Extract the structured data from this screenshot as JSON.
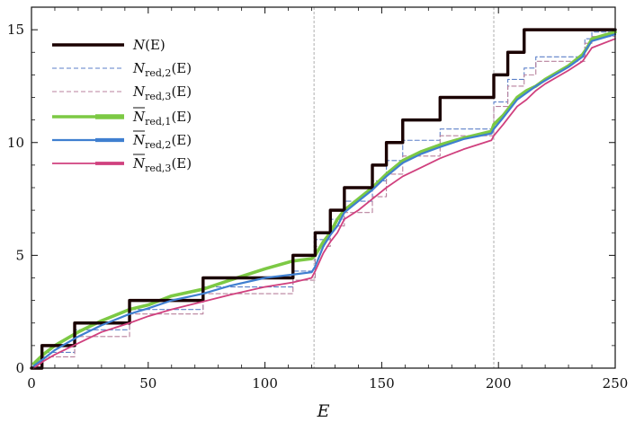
{
  "chart_data": {
    "type": "line",
    "xlabel": "E",
    "ylabel": "",
    "xlim": [
      0,
      250
    ],
    "ylim": [
      0,
      16
    ],
    "x_ticks": [
      0,
      50,
      100,
      150,
      200,
      250
    ],
    "y_ticks": [
      0,
      5,
      10,
      15
    ],
    "grid": false,
    "legend_position": "top-left",
    "vertical_reference_lines": [
      121,
      198
    ],
    "step_points": [
      4.5,
      18.5,
      42,
      73.5,
      112,
      121.5,
      128,
      134,
      146,
      152,
      159,
      175,
      198,
      204,
      211,
      216,
      237,
      240
    ],
    "series": [
      {
        "name": "N(E)",
        "legend_label": {
          "base": "N",
          "sub": "",
          "arg": "(E)",
          "overline": false
        },
        "kind": "step",
        "color": "#1a0000",
        "style": "solid-thick",
        "x": [
          0,
          4.5,
          18.5,
          42,
          73.5,
          112,
          121.5,
          128,
          134,
          146,
          152,
          159,
          175,
          198,
          204,
          211,
          216,
          237,
          240,
          250
        ],
        "y": [
          0,
          1,
          2,
          3,
          4,
          5,
          6,
          7,
          8,
          9,
          10,
          11,
          12,
          13,
          14,
          15,
          15,
          15,
          15,
          15
        ]
      },
      {
        "name": "N_red,2(E)",
        "legend_label": {
          "base": "N",
          "sub": "red,2",
          "arg": "(E)",
          "overline": false
        },
        "kind": "step",
        "color": "#5b7fc8",
        "style": "dashed",
        "x": [
          0,
          4.5,
          18.5,
          42,
          73.5,
          112,
          121.5,
          128,
          134,
          146,
          152,
          159,
          175,
          198,
          204,
          211,
          216,
          237,
          240,
          250
        ],
        "y": [
          0,
          0.7,
          1.7,
          2.6,
          3.6,
          4.3,
          5.7,
          6.6,
          7.4,
          8.3,
          9.2,
          10.1,
          10.6,
          11.8,
          12.8,
          13.3,
          13.8,
          14.6,
          14.9,
          15
        ]
      },
      {
        "name": "N_red,3(E)",
        "legend_label": {
          "base": "N",
          "sub": "red,3",
          "arg": "(E)",
          "overline": false
        },
        "kind": "step",
        "color": "#b8809c",
        "style": "dashed",
        "x": [
          0,
          4.5,
          18.5,
          42,
          73.5,
          112,
          121.5,
          128,
          134,
          146,
          152,
          159,
          175,
          198,
          204,
          211,
          216,
          237,
          240,
          250
        ],
        "y": [
          0,
          0.5,
          1.4,
          2.4,
          3.3,
          3.9,
          5.4,
          6.3,
          6.9,
          7.6,
          8.6,
          9.4,
          10.3,
          11.6,
          12.5,
          13.0,
          13.6,
          14.4,
          14.7,
          15
        ]
      },
      {
        "name": "N̄_red,1(E)",
        "legend_label": {
          "base": "N",
          "sub": "red,1",
          "arg": "(E)",
          "overline": true
        },
        "kind": "smooth",
        "color": "#7cc944",
        "style": "solid",
        "x": [
          1,
          5,
          10,
          20,
          30,
          42,
          50,
          60,
          73.5,
          85,
          100,
          112,
          120,
          121.5,
          125,
          128,
          131,
          134,
          140,
          146,
          152,
          159,
          167,
          175,
          185,
          197,
          198,
          202,
          205,
          208,
          212,
          216,
          220,
          230,
          236,
          238,
          240,
          250
        ],
        "y": [
          0.2,
          0.6,
          1.0,
          1.6,
          2.1,
          2.6,
          2.8,
          3.2,
          3.5,
          3.9,
          4.4,
          4.75,
          4.85,
          5.0,
          5.6,
          6.0,
          6.6,
          7.0,
          7.5,
          8.0,
          8.6,
          9.2,
          9.6,
          9.9,
          10.2,
          10.5,
          10.8,
          11.2,
          11.6,
          12.0,
          12.3,
          12.5,
          12.8,
          13.4,
          13.9,
          14.2,
          14.6,
          14.9
        ]
      },
      {
        "name": "N̄_red,2(E)",
        "legend_label": {
          "base": "N",
          "sub": "red,2",
          "arg": "(E)",
          "overline": true
        },
        "kind": "smooth",
        "color": "#3f7fd0",
        "style": "solid",
        "x": [
          1,
          5,
          10,
          20,
          30,
          42,
          50,
          60,
          73.5,
          85,
          100,
          112,
          120,
          121.5,
          125,
          128,
          131,
          134,
          140,
          146,
          152,
          159,
          167,
          175,
          185,
          197,
          198,
          202,
          205,
          208,
          212,
          216,
          220,
          230,
          236,
          238,
          240,
          250
        ],
        "y": [
          0.1,
          0.4,
          0.8,
          1.4,
          1.9,
          2.4,
          2.65,
          3.0,
          3.3,
          3.65,
          4.0,
          4.15,
          4.25,
          4.5,
          5.4,
          5.9,
          6.3,
          6.9,
          7.4,
          7.9,
          8.5,
          9.1,
          9.5,
          9.8,
          10.15,
          10.4,
          10.6,
          11.1,
          11.5,
          11.9,
          12.2,
          12.5,
          12.75,
          13.35,
          13.8,
          14.2,
          14.5,
          14.8
        ]
      },
      {
        "name": "N̄_red,3(E)",
        "legend_label": {
          "base": "N",
          "sub": "red,3",
          "arg": "(E)",
          "overline": true
        },
        "kind": "smooth",
        "color": "#d0407e",
        "style": "solid",
        "x": [
          1,
          5,
          10,
          20,
          30,
          42,
          50,
          60,
          73.5,
          85,
          100,
          112,
          120,
          121.5,
          125,
          128,
          131,
          134,
          140,
          146,
          152,
          159,
          167,
          175,
          185,
          197,
          198,
          202,
          205,
          208,
          212,
          216,
          220,
          230,
          236,
          238,
          240,
          250
        ],
        "y": [
          0.0,
          0.3,
          0.6,
          1.1,
          1.6,
          2.0,
          2.3,
          2.6,
          2.95,
          3.25,
          3.6,
          3.8,
          4.0,
          4.3,
          5.1,
          5.6,
          6.0,
          6.6,
          7.0,
          7.5,
          8.0,
          8.5,
          8.9,
          9.3,
          9.7,
          10.1,
          10.3,
          10.8,
          11.2,
          11.6,
          11.9,
          12.3,
          12.6,
          13.2,
          13.6,
          13.9,
          14.2,
          14.6
        ]
      }
    ]
  }
}
